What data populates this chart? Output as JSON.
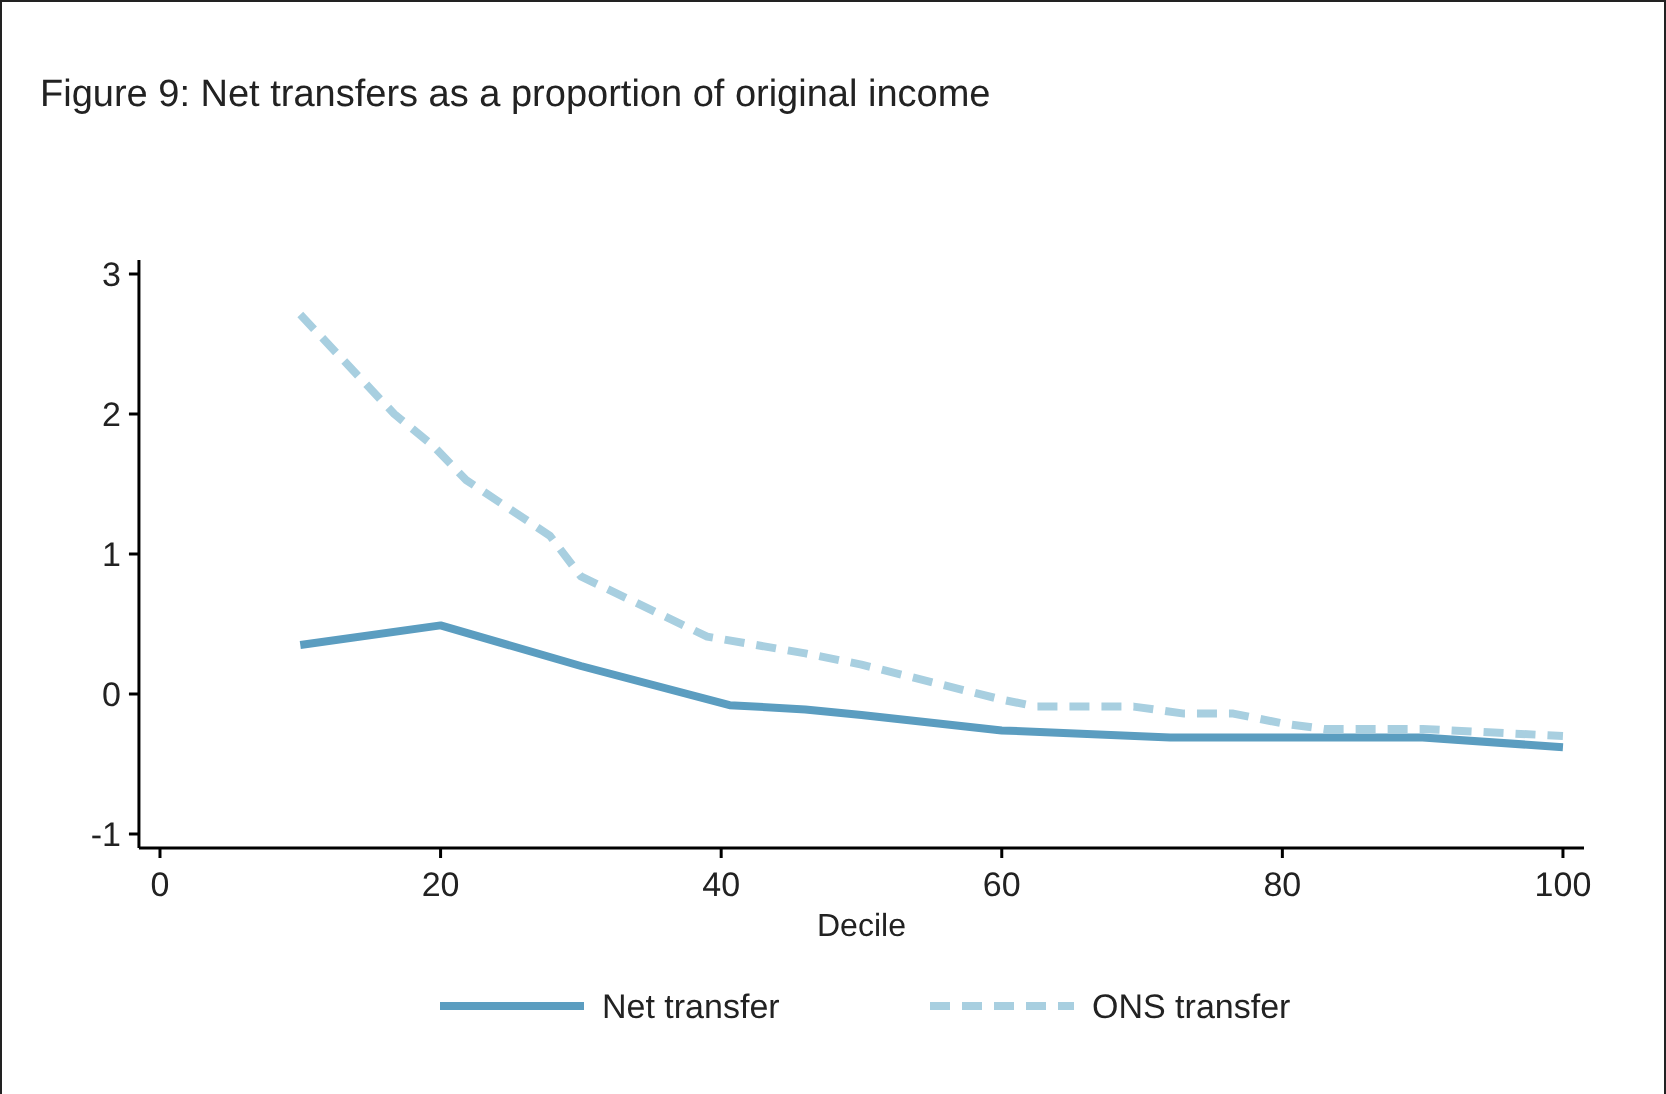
{
  "chart_data": {
    "type": "line",
    "title": "Figure 9: Net transfers as a proportion of original income",
    "xlabel": "Decile",
    "xlim": [
      -1.5,
      101.5
    ],
    "xticks": [
      0,
      20,
      40,
      60,
      80,
      100
    ],
    "ylim": [
      -1.1,
      3.1
    ],
    "yticks": [
      -1,
      0,
      1,
      2,
      3
    ],
    "grid": false,
    "legend": "bottom",
    "series": [
      {
        "name": "Net transfer",
        "color": "#5b9dc0",
        "line_style": "solid",
        "x": [
          10,
          20,
          30,
          40.6,
          46,
          50,
          60,
          72,
          80,
          90,
          100
        ],
        "values": [
          0.35,
          0.49,
          0.2,
          -0.08,
          -0.11,
          -0.15,
          -0.26,
          -0.31,
          -0.31,
          -0.31,
          -0.38
        ]
      },
      {
        "name": "ONS transfer",
        "color": "#a8cfe0",
        "line_style": "dashed",
        "x": [
          10,
          16.7,
          19.5,
          21.8,
          27.8,
          30,
          39,
          46,
          50,
          60,
          62.5,
          69.4,
          73,
          76.5,
          80,
          83,
          90,
          100
        ],
        "values": [
          2.71,
          2.0,
          1.77,
          1.53,
          1.13,
          0.84,
          0.41,
          0.29,
          0.21,
          -0.04,
          -0.09,
          -0.09,
          -0.14,
          -0.14,
          -0.21,
          -0.25,
          -0.25,
          -0.3
        ]
      }
    ]
  }
}
